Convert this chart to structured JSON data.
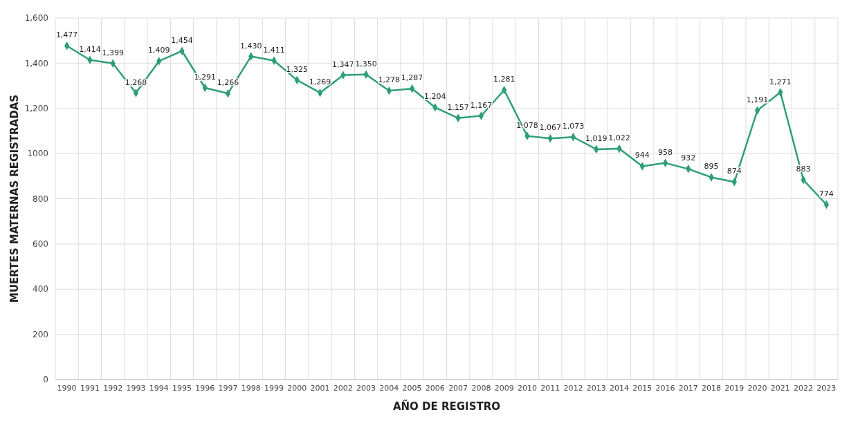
{
  "chart_data": {
    "type": "line",
    "xlabel": "AÑO DE REGISTRO",
    "ylabel": "MUERTES MATERNAS REGISTRADAS",
    "categories": [
      "1990",
      "1991",
      "1992",
      "1993",
      "1994",
      "1995",
      "1996",
      "1997",
      "1998",
      "1999",
      "2000",
      "2001",
      "2002",
      "2003",
      "2004",
      "2005",
      "2006",
      "2007",
      "2008",
      "2009",
      "2010",
      "2011",
      "2012",
      "2013",
      "2014",
      "2015",
      "2016",
      "2017",
      "2018",
      "2019",
      "2020",
      "2021",
      "2022",
      "2023"
    ],
    "series": [
      {
        "color": "#2e9e78",
        "values": [
          1477,
          1414,
          1399,
          1268,
          1409,
          1454,
          1291,
          1266,
          1430,
          1411,
          1325,
          1269,
          1347,
          1350,
          1278,
          1287,
          1204,
          1157,
          1167,
          1281,
          1078,
          1067,
          1073,
          1019,
          1022,
          944,
          958,
          932,
          895,
          874,
          1191,
          1271,
          883,
          774
        ],
        "value_labels": [
          "1,477",
          "1,414",
          "1,399",
          "1,268",
          "1,409",
          "1,454",
          "1,291",
          "1,266",
          "1,430",
          "1,411",
          "1,325",
          "1,269",
          "1,347",
          "1,350",
          "1,278",
          "1,287",
          "1,204",
          "1,157",
          "1,167",
          "1,281",
          "1,078",
          "1,067",
          "1,073",
          "1,019",
          "1,022",
          "944",
          "958",
          "932",
          "895",
          "874",
          "1,191",
          "1,271",
          "883",
          "774"
        ]
      }
    ],
    "ylim": [
      0,
      1600
    ],
    "yticks": [
      0,
      200,
      400,
      600,
      800,
      1000,
      {
        "value": 1200,
        "label": "1,200"
      },
      {
        "value": 1400,
        "label": "1,400"
      },
      {
        "value": 1600,
        "label": "1,600"
      }
    ],
    "grid": true,
    "marker": "diamond",
    "line_style": "solid"
  }
}
